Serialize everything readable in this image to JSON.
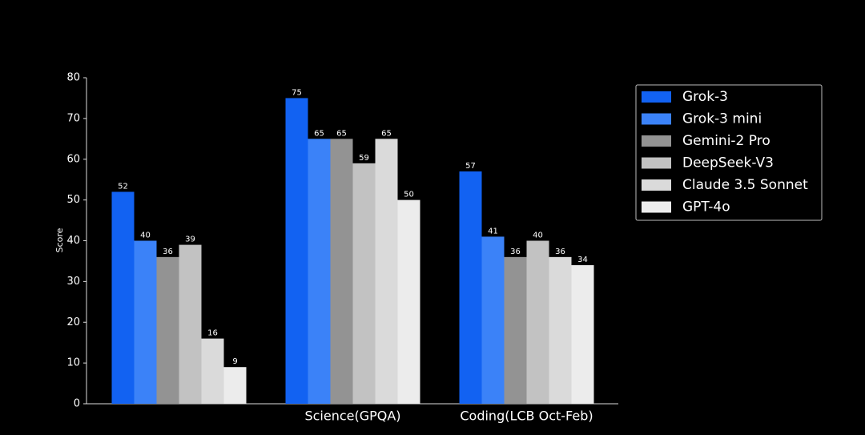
{
  "chart_data": {
    "type": "bar",
    "y_label": "Score",
    "categories": [
      null,
      "Science(GPQA)",
      "Coding(LCB Oct-Feb)"
    ],
    "series": [
      {
        "name": "Grok-3",
        "color": "#1262f2",
        "values": [
          52,
          75,
          57
        ]
      },
      {
        "name": "Grok-3 mini",
        "color": "#3b82f8",
        "values": [
          40,
          65,
          41
        ]
      },
      {
        "name": "Gemini-2 Pro",
        "color": "#939393",
        "values": [
          36,
          65,
          36
        ]
      },
      {
        "name": "DeepSeek-V3",
        "color": "#c2c2c2",
        "values": [
          39,
          59,
          40
        ]
      },
      {
        "name": "Claude 3.5 Sonnet",
        "color": "#dadada",
        "values": [
          16,
          65,
          36
        ]
      },
      {
        "name": "GPT-4o",
        "color": "#ececec",
        "values": [
          9,
          50,
          34
        ]
      }
    ],
    "ylim": [
      0,
      80
    ],
    "yticks": [
      0,
      10,
      20,
      30,
      40,
      50,
      60,
      70,
      80
    ],
    "legend": "upper right"
  }
}
